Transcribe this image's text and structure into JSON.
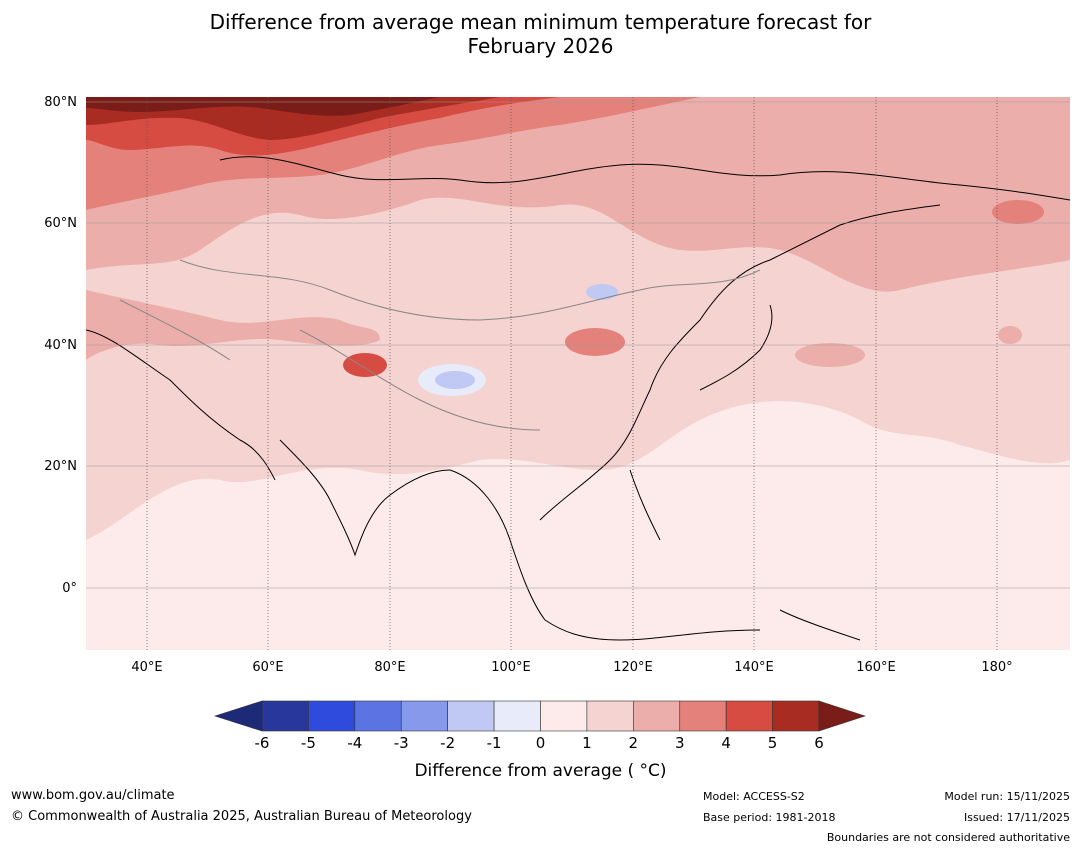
{
  "title": {
    "line1": "Difference from average mean minimum temperature forecast for",
    "line2": "February 2026"
  },
  "map": {
    "lat_labels": [
      "80°N",
      "60°N",
      "40°N",
      "20°N",
      "0°"
    ],
    "lon_labels": [
      "40°E",
      "60°E",
      "80°E",
      "100°E",
      "120°E",
      "140°E",
      "160°E",
      "180°"
    ]
  },
  "colorbar": {
    "ticks": [
      "-6",
      "-5",
      "-4",
      "-3",
      "-2",
      "-1",
      "0",
      "1",
      "2",
      "3",
      "4",
      "5",
      "6"
    ],
    "colors": [
      "#27379b",
      "#2f4bde",
      "#5b73e3",
      "#8799ea",
      "#c0c8f4",
      "#e8ebfa",
      "#fcebea",
      "#f5d3d0",
      "#ecaeaa",
      "#e4817b",
      "#d64b42",
      "#a82c22"
    ],
    "under_color": "#1c2a78",
    "over_color": "#7a1c18",
    "label": "Difference from average ( °C)"
  },
  "footer": {
    "url": "www.bom.gov.au/climate",
    "copyright": "© Commonwealth of Australia 2025, Australian Bureau of Meteorology",
    "model": "Model: ACCESS-S2",
    "base_period": "Base period: 1981-2018",
    "model_run": "Model run: 15/11/2025",
    "issued": "Issued: 17/11/2025",
    "disclaimer": "Boundaries are not considered authoritative"
  }
}
